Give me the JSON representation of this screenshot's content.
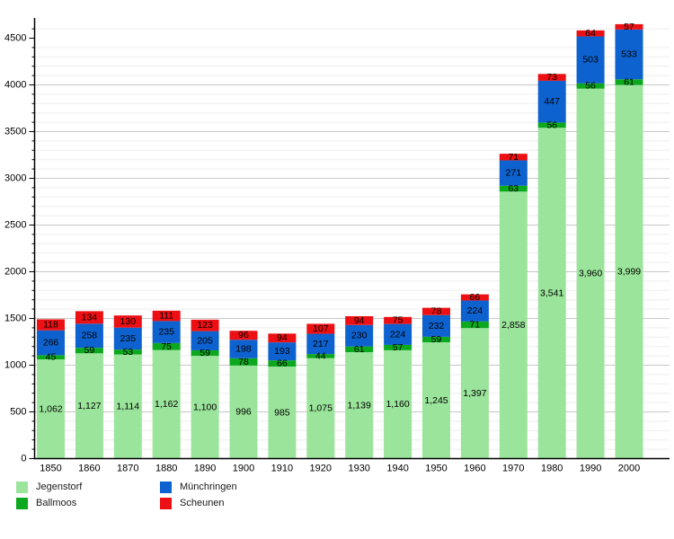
{
  "chart_data": {
    "type": "bar",
    "stacked": true,
    "title": "",
    "xlabel": "",
    "ylabel": "",
    "x": [
      1850,
      1860,
      1870,
      1880,
      1890,
      1900,
      1910,
      1920,
      1930,
      1940,
      1950,
      1960,
      1970,
      1980,
      1990,
      2000
    ],
    "xtick_labels": [
      "1850",
      "1860",
      "1870",
      "1880",
      "1890",
      "1900",
      "1910",
      "1920",
      "1930",
      "1940",
      "1950",
      "1960",
      "1970",
      "1980",
      "1990",
      "2000"
    ],
    "ytick_labels": [
      "0",
      "500",
      "1000",
      "1500",
      "2000",
      "2500",
      "3000",
      "3500",
      "4000",
      "4500"
    ],
    "ylim": [
      0,
      4700
    ],
    "ytick_major": 500,
    "ytick_minor": 100,
    "grid": true,
    "grid_major_color": "#c8c8c8",
    "grid_minor_color": "#ededed",
    "axis_color": "#000000",
    "label_color": "#000000",
    "legend_position": "bottom-left",
    "value_labels": true,
    "series": [
      {
        "name": "Jegenstorf",
        "color": "#9BE49B",
        "values": [
          1062,
          1127,
          1114,
          1162,
          1100,
          996,
          985,
          1075,
          1139,
          1160,
          1245,
          1397,
          2858,
          3541,
          3960,
          3999
        ]
      },
      {
        "name": "Ballmoos",
        "color": "#0CA81E",
        "values": [
          45,
          59,
          53,
          75,
          59,
          78,
          66,
          44,
          61,
          57,
          59,
          71,
          63,
          56,
          56,
          61
        ]
      },
      {
        "name": "Münchringen",
        "color": "#0D62CF",
        "values": [
          266,
          258,
          235,
          235,
          205,
          198,
          193,
          217,
          230,
          224,
          232,
          224,
          271,
          447,
          503,
          533
        ]
      },
      {
        "name": "Scheunen",
        "color": "#EC1014",
        "values": [
          118,
          134,
          130,
          111,
          123,
          96,
          94,
          107,
          94,
          75,
          78,
          66,
          71,
          73,
          64,
          57
        ]
      }
    ]
  },
  "legend": {
    "order_note": "two columns: Jegenstorf/Ballmoos left, Münchringen/Scheunen right"
  }
}
